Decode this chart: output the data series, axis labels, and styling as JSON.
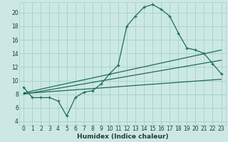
{
  "xlabel": "Humidex (Indice chaleur)",
  "bg_color": "#cce8e4",
  "grid_color": "#a8d4cf",
  "line_color": "#1e6b5a",
  "xlim": [
    -0.5,
    23.5
  ],
  "ylim": [
    3.5,
    21.5
  ],
  "yticks": [
    4,
    6,
    8,
    10,
    12,
    14,
    16,
    18,
    20
  ],
  "xticks": [
    0,
    1,
    2,
    3,
    4,
    5,
    6,
    7,
    8,
    9,
    10,
    11,
    12,
    13,
    14,
    15,
    16,
    17,
    18,
    19,
    20,
    21,
    22,
    23
  ],
  "curve1_x": [
    0,
    1,
    2,
    3,
    4,
    5,
    6,
    7,
    8,
    9,
    10,
    11,
    12,
    13,
    14,
    15,
    16,
    17,
    18,
    19,
    20,
    21,
    22,
    23
  ],
  "curve1_y": [
    9.0,
    7.5,
    7.5,
    7.5,
    7.0,
    4.8,
    7.5,
    8.3,
    8.5,
    9.5,
    11.0,
    12.3,
    18.0,
    19.5,
    20.8,
    21.2,
    20.5,
    19.5,
    17.0,
    14.8,
    14.5,
    14.0,
    12.5,
    11.0
  ],
  "line2_start_x": 0,
  "line2_start_y": 8.2,
  "line2_end_x": 23,
  "line2_end_y": 14.5,
  "line3_start_x": 0,
  "line3_start_y": 8.0,
  "line3_end_x": 23,
  "line3_end_y": 13.0,
  "line4_start_x": 0,
  "line4_start_y": 8.1,
  "line4_end_x": 23,
  "line4_end_y": 10.2,
  "xlabel_fontsize": 6.5,
  "tick_fontsize": 5.5
}
